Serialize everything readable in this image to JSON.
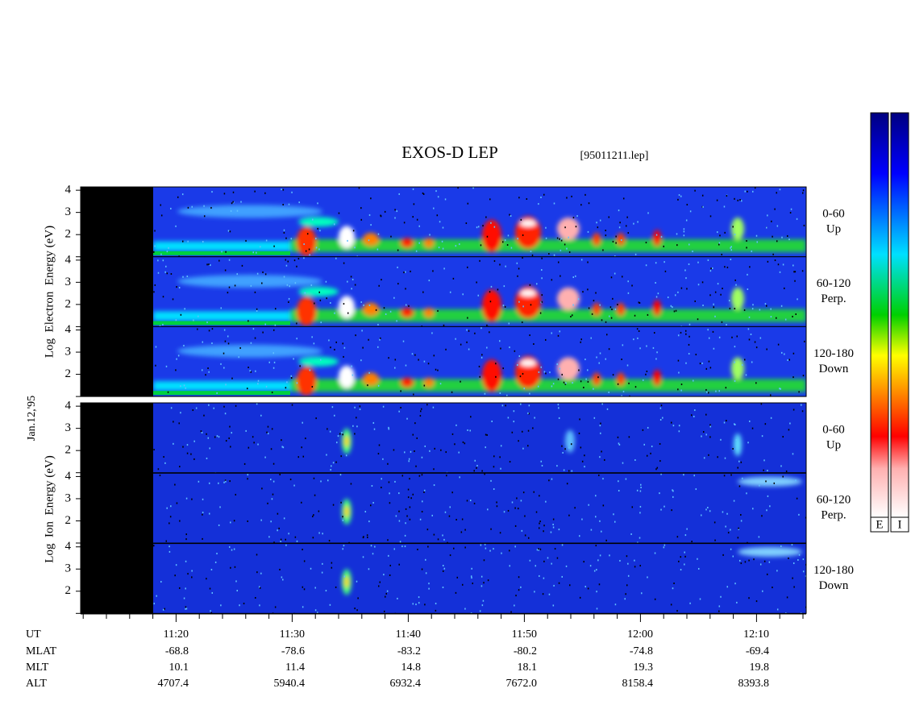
{
  "title": "EXOS-D LEP",
  "file": "[95011211.lep]",
  "date": "Jan.12,'95",
  "panels": [
    {
      "label": "Log  Electron  Energy (eV)",
      "channels": [
        {
          "range": "0-60",
          "dir": "Up"
        },
        {
          "range": "60-120",
          "dir": "Perp."
        },
        {
          "range": "120-180",
          "dir": "Down"
        }
      ]
    },
    {
      "label": "Log  Ion  Energy (eV)",
      "channels": [
        {
          "range": "0-60",
          "dir": "Up"
        },
        {
          "range": "60-120",
          "dir": "Perp."
        },
        {
          "range": "120-180",
          "dir": "Down"
        }
      ]
    }
  ],
  "energy_ticks": [
    2,
    3,
    4
  ],
  "energy_lim": [
    1,
    4.15
  ],
  "colorbar_labels": [
    "E",
    "I"
  ],
  "orbit": {
    "row_labels": [
      "UT",
      "MLAT",
      "MLT",
      "ALT"
    ],
    "columns": [
      [
        "11:20",
        "-68.8",
        "10.1",
        "4707.4"
      ],
      [
        "11:30",
        "-78.6",
        "11.4",
        "5940.4"
      ],
      [
        "11:40",
        "-83.2",
        "14.8",
        "6932.4"
      ],
      [
        "11:50",
        "-80.2",
        "18.1",
        "7672.0"
      ],
      [
        "12:00",
        "-74.8",
        "19.3",
        "8158.4"
      ],
      [
        "12:10",
        "-69.4",
        "19.8",
        "8393.8"
      ]
    ]
  }
}
